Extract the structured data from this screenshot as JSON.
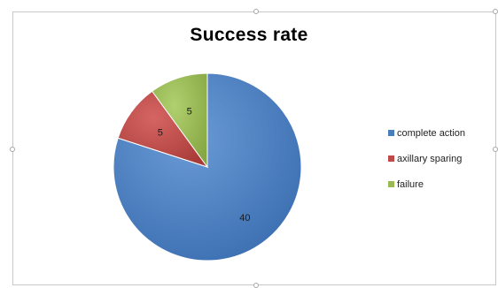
{
  "chart_data": {
    "type": "pie",
    "title": "Success rate",
    "categories": [
      "complete action",
      "axillary sparing",
      "failure"
    ],
    "values": [
      40,
      5,
      5
    ],
    "colors": [
      "#4a7ebb",
      "#be4b48",
      "#98b954"
    ],
    "data_labels": [
      "40",
      "5",
      "5"
    ],
    "legend_position": "right",
    "start_angle": "top",
    "direction": "clockwise"
  }
}
